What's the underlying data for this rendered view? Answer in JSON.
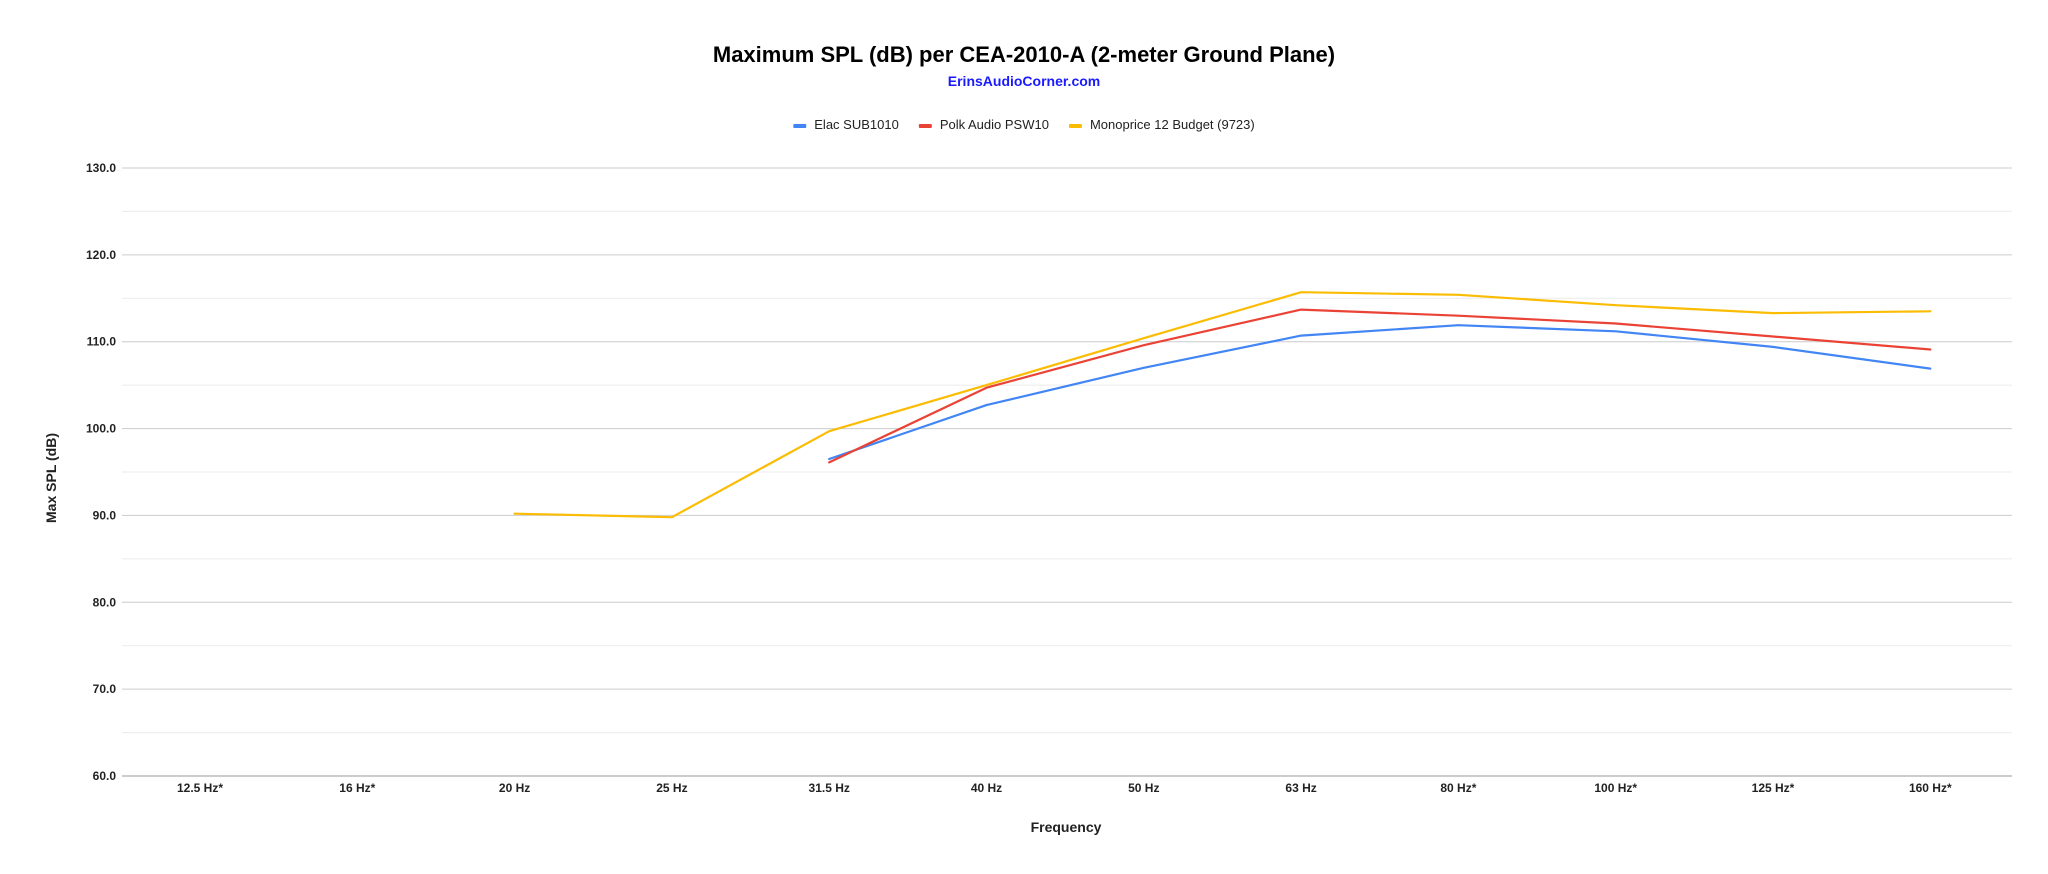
{
  "chart_data": {
    "type": "line",
    "title": "Maximum SPL (dB) per CEA-2010-A (2-meter Ground Plane)",
    "subtitle": "ErinsAudioCorner.com",
    "xlabel": "Frequency",
    "ylabel": "Max SPL (dB)",
    "ylim": [
      60,
      130
    ],
    "yticks": [
      "60.0",
      "70.0",
      "80.0",
      "90.0",
      "100.0",
      "110.0",
      "120.0",
      "130.0"
    ],
    "grid": true,
    "legend_position": "top",
    "categories": [
      "12.5 Hz*",
      "16 Hz*",
      "20 Hz",
      "25 Hz",
      "31.5 Hz",
      "40 Hz",
      "50 Hz",
      "63 Hz",
      "80 Hz*",
      "100 Hz*",
      "125 Hz*",
      "160 Hz*"
    ],
    "series": [
      {
        "name": "Elac SUB1010",
        "color": "#4285f4",
        "values": [
          null,
          null,
          null,
          null,
          96.5,
          102.7,
          107.0,
          110.7,
          111.9,
          111.2,
          109.4,
          106.9
        ]
      },
      {
        "name": "Polk Audio PSW10",
        "color": "#ea4335",
        "values": [
          null,
          null,
          null,
          null,
          96.1,
          104.7,
          109.6,
          113.7,
          113.0,
          112.1,
          110.6,
          109.1
        ]
      },
      {
        "name": "Monoprice 12 Budget (9723)",
        "color": "#fbbc04",
        "values": [
          null,
          null,
          90.2,
          89.8,
          99.7,
          105.0,
          110.4,
          115.7,
          115.4,
          114.2,
          113.3,
          113.5
        ]
      }
    ]
  }
}
